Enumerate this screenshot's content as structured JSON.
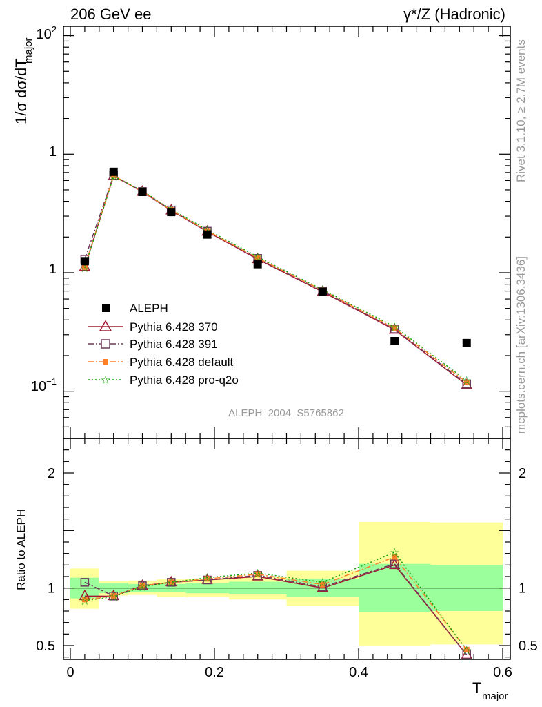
{
  "header": {
    "left": "206 GeV ee",
    "right": "γ*/Z (Hadronic)"
  },
  "side": {
    "rivet": "Rivet 3.1.10, ≥ 2.7M events",
    "mcplots": "mcplots.cern.ch [arXiv:1306.3436]"
  },
  "analysis_id": "ALEPH_2004_S5765862",
  "colors": {
    "aleph": "#000000",
    "p370": "#a21c35",
    "p391": "#6e3a5a",
    "pdefault": "#ff7f2a",
    "pq2o": "#17a30b",
    "band_inner": "#9bff9b",
    "band_outer": "#ffff99"
  },
  "legend": [
    {
      "label": "ALEPH",
      "marker": "filled-square"
    },
    {
      "label": "Pythia 6.428 370",
      "marker": "open-triangle"
    },
    {
      "label": "Pythia 6.428 391",
      "marker": "open-square"
    },
    {
      "label": "Pythia 6.428 default",
      "marker": "filled-square-small"
    },
    {
      "label": "Pythia 6.428 pro-q2o",
      "marker": "star"
    }
  ],
  "chart_data": [
    {
      "type": "line",
      "yscale": "log",
      "ylabel_main": "1/σ  dσ/dT",
      "ylabel_sub": "major",
      "xlim": [
        0,
        0.6
      ],
      "ylim": [
        0.04,
        120
      ],
      "ytick_labels": [
        "10",
        "1",
        "10",
        "1",
        "10"
      ],
      "ytick_exps": [
        "2",
        "",
        "",
        "",
        "−1"
      ],
      "x": [
        0.02,
        0.06,
        0.1,
        0.14,
        0.19,
        0.26,
        0.35,
        0.45,
        0.55
      ],
      "series": [
        {
          "name": "ALEPH",
          "values": [
            1.25,
            7.1,
            4.8,
            3.25,
            2.1,
            1.18,
            0.69,
            0.265,
            0.255
          ]
        },
        {
          "name": "Pythia 6.428 370",
          "values": [
            1.12,
            6.55,
            4.82,
            3.35,
            2.22,
            1.3,
            0.69,
            0.33,
            0.113
          ]
        },
        {
          "name": "Pythia 6.428 391",
          "values": [
            1.3,
            6.6,
            4.85,
            3.38,
            2.24,
            1.32,
            0.7,
            0.335,
            0.115
          ]
        },
        {
          "name": "Pythia 6.428 default",
          "values": [
            1.12,
            6.58,
            4.85,
            3.38,
            2.25,
            1.33,
            0.71,
            0.34,
            0.119
          ]
        },
        {
          "name": "Pythia 6.428 pro-q2o",
          "values": [
            1.1,
            6.5,
            4.9,
            3.42,
            2.3,
            1.36,
            0.72,
            0.35,
            0.123
          ]
        }
      ]
    },
    {
      "type": "line",
      "ylabel": "Ratio to ALEPH",
      "xlabel_main": "T",
      "xlabel_sub": "major",
      "xlim": [
        0,
        0.6
      ],
      "ylim": [
        0.38,
        2.3
      ],
      "yticks": [
        0.5,
        1,
        2
      ],
      "ytick_labels": [
        "0.5",
        "1",
        "2"
      ],
      "xticks": [
        0,
        0.2,
        0.4,
        0.6
      ],
      "xtick_labels": [
        "0",
        "0.2",
        "0.4",
        "0.6"
      ],
      "x": [
        0.02,
        0.06,
        0.1,
        0.14,
        0.19,
        0.26,
        0.35,
        0.45,
        0.55
      ],
      "bins": [
        [
          0,
          0.04
        ],
        [
          0.04,
          0.08
        ],
        [
          0.08,
          0.12
        ],
        [
          0.12,
          0.16
        ],
        [
          0.16,
          0.22
        ],
        [
          0.22,
          0.3
        ],
        [
          0.3,
          0.4
        ],
        [
          0.4,
          0.5
        ],
        [
          0.5,
          0.6
        ]
      ],
      "band_inner": [
        [
          0.91,
          1.09
        ],
        [
          0.955,
          1.045
        ],
        [
          0.965,
          1.035
        ],
        [
          0.965,
          1.035
        ],
        [
          0.955,
          1.045
        ],
        [
          0.945,
          1.055
        ],
        [
          0.92,
          1.08
        ],
        [
          0.79,
          1.21
        ],
        [
          0.8,
          1.2
        ]
      ],
      "band_outer": [
        [
          0.82,
          1.17
        ],
        [
          0.935,
          1.06
        ],
        [
          0.94,
          1.065
        ],
        [
          0.925,
          1.075
        ],
        [
          0.92,
          1.08
        ],
        [
          0.9,
          1.1
        ],
        [
          0.845,
          1.15
        ],
        [
          0.495,
          1.575
        ],
        [
          0.51,
          1.57
        ]
      ],
      "series": [
        {
          "name": "Pythia 6.428 370",
          "values": [
            0.93,
            0.93,
            1.02,
            1.05,
            1.07,
            1.1,
            1.0,
            1.2,
            0.42
          ]
        },
        {
          "name": "Pythia 6.428 391",
          "values": [
            1.05,
            0.93,
            1.02,
            1.05,
            1.07,
            1.11,
            1.01,
            1.21,
            0.42
          ]
        },
        {
          "name": "Pythia 6.428 default",
          "values": [
            0.9,
            0.93,
            1.02,
            1.05,
            1.08,
            1.12,
            1.03,
            1.27,
            0.465
          ]
        },
        {
          "name": "Pythia 6.428 pro-q2o",
          "values": [
            0.89,
            0.925,
            1.01,
            1.05,
            1.09,
            1.13,
            1.05,
            1.31,
            0.46
          ]
        }
      ]
    }
  ]
}
